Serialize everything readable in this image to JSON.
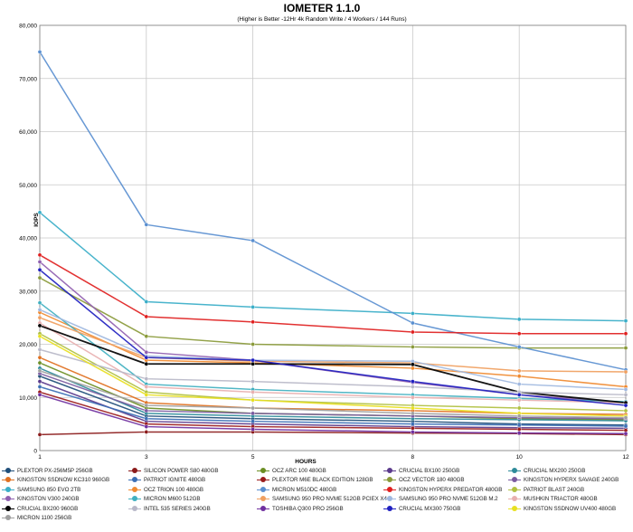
{
  "chart_data": {
    "type": "line",
    "title": "IOMETER 1.1.0",
    "subtitle": "(Higher is Better -12Hr 4k Random Write / 4 Workers / 144 Runs)",
    "xlabel": "HOURS",
    "ylabel": "IOPS",
    "x": [
      1,
      3,
      5,
      8,
      10,
      12
    ],
    "xlim": [
      1,
      12
    ],
    "ylim": [
      0,
      80000
    ],
    "yticks": [
      "0",
      "10,000",
      "20,000",
      "30,000",
      "40,000",
      "50,000",
      "60,000",
      "70,000",
      "80,000"
    ],
    "xticks": [
      "1",
      "3",
      "5",
      "8",
      "10",
      "12"
    ],
    "grid": true,
    "legend_position": "bottom",
    "series": [
      {
        "name": "PLEXTOR PX-256M5P 256GB",
        "color": "#1f4e79",
        "values": [
          14000,
          6500,
          6000,
          5500,
          5000,
          4800
        ]
      },
      {
        "name": "SILICON POWER S80 480GB",
        "color": "#8b1a1a",
        "values": [
          3000,
          3500,
          3500,
          3300,
          3200,
          3000
        ]
      },
      {
        "name": "OCZ ARC 100 480GB",
        "color": "#6b8e23",
        "values": [
          16500,
          8000,
          7000,
          6500,
          6000,
          5800
        ]
      },
      {
        "name": "CRUCIAL BX100 250GB",
        "color": "#5b3a8c",
        "values": [
          13000,
          5500,
          5000,
          4500,
          4300,
          4200
        ]
      },
      {
        "name": "CRUCIAL MX200 250GB",
        "color": "#2e8b9a",
        "values": [
          15500,
          7000,
          6500,
          6000,
          5800,
          5600
        ]
      },
      {
        "name": "KINGSTON SSDNOW KC310 960GB",
        "color": "#e07020",
        "values": [
          17500,
          9000,
          8000,
          7500,
          7000,
          6800
        ]
      },
      {
        "name": "PATRIOT IGNITE 480GB",
        "color": "#3b6fb5",
        "values": [
          12000,
          6000,
          5500,
          5000,
          4800,
          4600
        ]
      },
      {
        "name": "PLEXTOR M6E BLACK EDITION 128GB",
        "color": "#9b1c1c",
        "values": [
          11000,
          5000,
          4500,
          4200,
          4000,
          3800
        ]
      },
      {
        "name": "OCZ VECTOR 180 480GB",
        "color": "#8a9a3a",
        "values": [
          32500,
          21500,
          20000,
          19500,
          19300,
          19300
        ]
      },
      {
        "name": "KINGSTON HYPERX SAVAGE 240GB",
        "color": "#7a5aa0",
        "values": [
          14500,
          7500,
          7000,
          6500,
          6200,
          6000
        ]
      },
      {
        "name": "SAMSUNG 850 EVO 2TB",
        "color": "#3aaec8",
        "values": [
          44800,
          28000,
          27000,
          25800,
          24700,
          24400
        ]
      },
      {
        "name": "OCZ TRION 100 480GB",
        "color": "#f08a30",
        "values": [
          26000,
          17000,
          16500,
          15500,
          14000,
          12000
        ]
      },
      {
        "name": "MICRON M510DC 480GB",
        "color": "#5a8fd0",
        "values": [
          75000,
          42500,
          39500,
          24000,
          19500,
          15200
        ]
      },
      {
        "name": "KINGSTON HYPERX PREDATOR 480GB",
        "color": "#e02020",
        "values": [
          36800,
          25200,
          24200,
          22300,
          22000,
          22000
        ]
      },
      {
        "name": "PATRIOT BLAST 240GB",
        "color": "#b0c040",
        "values": [
          22000,
          11000,
          9500,
          8500,
          8000,
          7500
        ]
      },
      {
        "name": "KINGSTON V300 240GB",
        "color": "#9060b0",
        "values": [
          35500,
          18500,
          17000,
          12800,
          10500,
          9000
        ]
      },
      {
        "name": "MICRON M600 512GB",
        "color": "#40b0c0",
        "values": [
          27800,
          12500,
          11500,
          10500,
          9800,
          9200
        ]
      },
      {
        "name": "SAMSUNG 950 PRO NVME 512GB PCIEX X4",
        "color": "#f0a060",
        "values": [
          25000,
          17500,
          16800,
          16500,
          15000,
          14800
        ]
      },
      {
        "name": "SAMSUNG 950 PRO NVME 512GB M.2",
        "color": "#a0b8e0",
        "values": [
          26500,
          17800,
          17000,
          16800,
          12500,
          11500
        ]
      },
      {
        "name": "MUSHKIN TRIACTOR 480GB",
        "color": "#e8b0b0",
        "values": [
          24000,
          12000,
          11000,
          10000,
          9500,
          9000
        ]
      },
      {
        "name": "CRUCIAL BX200 960GB",
        "color": "#000000",
        "values": [
          23500,
          16300,
          16300,
          16200,
          11000,
          9000
        ]
      },
      {
        "name": "INTEL 535 SERIES 240GB",
        "color": "#b8b8c8",
        "values": [
          19000,
          13500,
          13000,
          12000,
          11000,
          10500
        ]
      },
      {
        "name": "TOSHIBA Q300 PRO 256GB",
        "color": "#7030a0",
        "values": [
          10500,
          4500,
          4000,
          3500,
          3300,
          3200
        ]
      },
      {
        "name": "CRUCIAL MX300 750GB",
        "color": "#2020c0",
        "values": [
          34000,
          17500,
          17000,
          13000,
          10500,
          8500
        ]
      },
      {
        "name": "KINGSTON SSDNOW UV400 480GB",
        "color": "#e8e020",
        "values": [
          21500,
          10500,
          9500,
          8000,
          7000,
          6500
        ]
      },
      {
        "name": "MICRON 1100 256GB",
        "color": "#a0a0a0",
        "values": [
          15000,
          8500,
          8000,
          7000,
          6500,
          6200
        ]
      }
    ]
  }
}
